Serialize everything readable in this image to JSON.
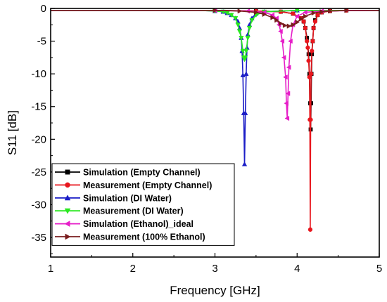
{
  "chart_data": {
    "type": "line",
    "title": "",
    "xlabel": "Frequency [GHz]",
    "ylabel": "S11 [dB]",
    "xlim": [
      1,
      5
    ],
    "ylim": [
      -38,
      0
    ],
    "x_ticks": [
      "1",
      "2",
      "3",
      "4",
      "5"
    ],
    "y_ticks": [
      "0",
      "-5",
      "-10",
      "-15",
      "-20",
      "-25",
      "-30",
      "-35"
    ],
    "grid": false,
    "legend_position": "bottom-left",
    "series": [
      {
        "name": "Simulation (Empty Channel)",
        "color": "#000000",
        "marker": "square",
        "x": [
          1.0,
          2.0,
          3.0,
          3.5,
          3.8,
          3.95,
          4.05,
          4.08,
          4.1,
          4.12,
          4.14,
          4.15,
          4.16,
          4.165,
          4.17,
          4.175,
          4.18,
          4.19,
          4.2,
          4.22,
          4.25,
          4.3,
          4.4,
          4.6,
          5.0
        ],
        "y": [
          -0.3,
          -0.3,
          -0.3,
          -0.4,
          -0.5,
          -0.8,
          -1.5,
          -2.0,
          -3.0,
          -4.5,
          -7.0,
          -10.0,
          -14.5,
          -18.5,
          -14.5,
          -10.0,
          -7.0,
          -5.0,
          -3.0,
          -1.8,
          -1.0,
          -0.6,
          -0.4,
          -0.3,
          -0.3
        ]
      },
      {
        "name": "Measurement (Empty Channel)",
        "color": "#e8161d",
        "marker": "circle",
        "x": [
          1.0,
          2.0,
          3.0,
          3.5,
          3.8,
          3.95,
          4.05,
          4.08,
          4.1,
          4.12,
          4.13,
          4.14,
          4.15,
          4.155,
          4.16,
          4.165,
          4.17,
          4.18,
          4.19,
          4.2,
          4.22,
          4.25,
          4.3,
          4.4,
          4.6,
          5.0
        ],
        "y": [
          -0.3,
          -0.3,
          -0.3,
          -0.4,
          -0.5,
          -0.8,
          -1.5,
          -2.0,
          -3.0,
          -5.0,
          -6.0,
          -8.0,
          -10.5,
          -17.0,
          -33.8,
          -17.0,
          -10.0,
          -6.5,
          -5.0,
          -3.0,
          -2.0,
          -1.0,
          -0.6,
          -0.4,
          -0.3,
          -0.3
        ]
      },
      {
        "name": "Simulation (DI Water)",
        "color": "#1c1ec7",
        "marker": "triangle-up",
        "x": [
          1.0,
          2.0,
          2.8,
          3.0,
          3.1,
          3.15,
          3.2,
          3.25,
          3.28,
          3.3,
          3.32,
          3.33,
          3.34,
          3.35,
          3.36,
          3.37,
          3.38,
          3.39,
          3.4,
          3.42,
          3.45,
          3.5,
          3.6,
          4.0,
          5.0
        ],
        "y": [
          -0.3,
          -0.3,
          -0.3,
          -0.4,
          -0.5,
          -0.7,
          -1.0,
          -1.5,
          -2.0,
          -3.0,
          -4.5,
          -6.5,
          -10.2,
          -16.0,
          -23.8,
          -16.0,
          -10.0,
          -6.0,
          -4.0,
          -2.5,
          -1.5,
          -0.8,
          -0.5,
          -0.3,
          -0.3
        ]
      },
      {
        "name": "Measurement (DI Water)",
        "color": "#29e81f",
        "marker": "triangle-down",
        "x": [
          1.0,
          2.0,
          2.8,
          3.0,
          3.1,
          3.15,
          3.2,
          3.25,
          3.28,
          3.3,
          3.32,
          3.34,
          3.35,
          3.36,
          3.37,
          3.38,
          3.4,
          3.42,
          3.45,
          3.5,
          3.6,
          4.0,
          5.0
        ],
        "y": [
          -0.3,
          -0.3,
          -0.3,
          -0.4,
          -0.5,
          -0.7,
          -1.0,
          -1.5,
          -2.5,
          -3.5,
          -4.5,
          -6.5,
          -7.5,
          -7.8,
          -7.5,
          -6.5,
          -4.5,
          -3.0,
          -1.8,
          -1.0,
          -0.5,
          -0.3,
          -0.3
        ]
      },
      {
        "name": "Simulation (Ethanol)_ideal",
        "color": "#e61ec8",
        "marker": "triangle-left",
        "x": [
          1.0,
          2.0,
          3.0,
          3.4,
          3.6,
          3.7,
          3.75,
          3.78,
          3.8,
          3.82,
          3.84,
          3.86,
          3.87,
          3.88,
          3.89,
          3.9,
          3.92,
          3.95,
          4.0,
          4.1,
          4.3,
          5.0
        ],
        "y": [
          -0.3,
          -0.3,
          -0.3,
          -0.4,
          -0.6,
          -1.0,
          -1.5,
          -2.5,
          -3.5,
          -5.0,
          -7.5,
          -10.5,
          -14.5,
          -16.8,
          -13.0,
          -9.0,
          -5.0,
          -2.5,
          -1.2,
          -0.6,
          -0.4,
          -0.3
        ]
      },
      {
        "name": "Measurement (100% Ethanol)",
        "color": "#7a1d1e",
        "marker": "triangle-right",
        "x": [
          1.0,
          2.0,
          3.0,
          3.3,
          3.5,
          3.6,
          3.7,
          3.75,
          3.8,
          3.85,
          3.9,
          3.95,
          4.0,
          4.05,
          4.1,
          4.2,
          4.3,
          4.4,
          4.6,
          5.0
        ],
        "y": [
          -0.3,
          -0.3,
          -0.3,
          -0.4,
          -0.6,
          -0.9,
          -1.4,
          -1.8,
          -2.3,
          -2.6,
          -2.7,
          -2.5,
          -2.1,
          -1.6,
          -1.2,
          -0.7,
          -0.5,
          -0.4,
          -0.3,
          -0.3
        ]
      }
    ]
  }
}
